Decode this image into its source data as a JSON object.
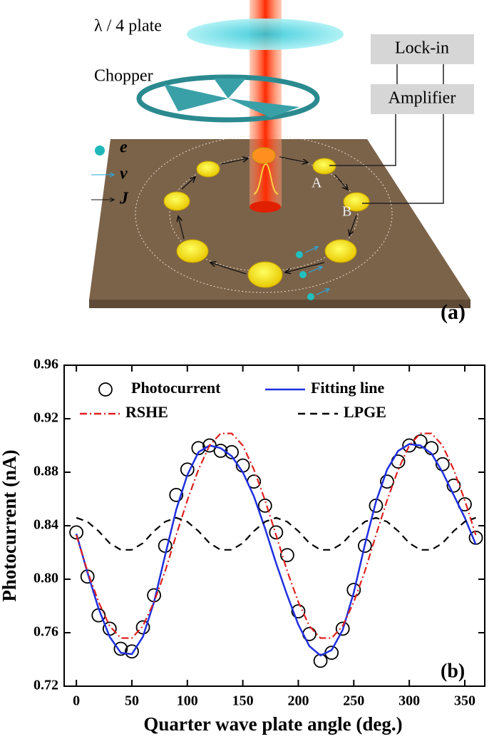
{
  "diagram": {
    "plate_label": "λ / 4  plate",
    "chopper_label": "Chopper",
    "lockin_label": "Lock-in",
    "amplifier_label": "Amplifier",
    "legend_e": "e",
    "legend_v": "v",
    "legend_j": "J",
    "contact_a": "A",
    "contact_b": "B",
    "panel_label": "(a)"
  },
  "chart_data": {
    "type": "line",
    "annotation": "(b)",
    "x_label": "Quarter wave plate angle (deg.)",
    "y_label": "Photocurrent (nA)",
    "x": [
      0,
      10,
      20,
      30,
      40,
      50,
      60,
      70,
      80,
      90,
      100,
      110,
      120,
      130,
      140,
      150,
      160,
      170,
      180,
      190,
      200,
      210,
      220,
      230,
      240,
      250,
      260,
      270,
      280,
      290,
      300,
      310,
      320,
      330,
      340,
      350,
      360
    ],
    "series": [
      {
        "name": "Photocurrent",
        "color": "#000000",
        "style": "circles",
        "values": [
          0.835,
          0.802,
          0.773,
          0.763,
          0.748,
          0.746,
          0.764,
          0.788,
          0.825,
          0.863,
          0.882,
          0.898,
          0.9,
          0.896,
          0.895,
          0.885,
          0.873,
          0.855,
          0.835,
          0.818,
          0.776,
          0.759,
          0.739,
          0.745,
          0.763,
          0.792,
          0.825,
          0.855,
          0.873,
          0.888,
          0.9,
          0.903,
          0.898,
          0.886,
          0.87,
          0.856,
          0.831
        ]
      },
      {
        "name": "Fitting line",
        "color": "#1f2fe0",
        "style": "solid",
        "values": [
          0.834,
          0.805,
          0.778,
          0.757,
          0.745,
          0.744,
          0.757,
          0.783,
          0.818,
          0.852,
          0.878,
          0.895,
          0.9,
          0.898,
          0.892,
          0.88,
          0.862,
          0.838,
          0.812,
          0.788,
          0.766,
          0.75,
          0.743,
          0.747,
          0.762,
          0.79,
          0.826,
          0.858,
          0.882,
          0.896,
          0.901,
          0.9,
          0.894,
          0.88,
          0.863,
          0.846,
          0.826
        ]
      },
      {
        "name": "RSHE",
        "color": "#e02020",
        "style": "dashdot",
        "values": [
          0.833,
          0.806,
          0.783,
          0.765,
          0.756,
          0.756,
          0.765,
          0.783,
          0.806,
          0.833,
          0.859,
          0.882,
          0.9,
          0.909,
          0.909,
          0.9,
          0.882,
          0.859,
          0.833,
          0.806,
          0.783,
          0.765,
          0.756,
          0.756,
          0.765,
          0.783,
          0.806,
          0.833,
          0.859,
          0.882,
          0.9,
          0.909,
          0.909,
          0.9,
          0.882,
          0.859,
          0.833
        ]
      },
      {
        "name": "LPGE",
        "color": "#000000",
        "style": "dash",
        "values": [
          0.846,
          0.843,
          0.836,
          0.827,
          0.822,
          0.822,
          0.827,
          0.836,
          0.843,
          0.846,
          0.843,
          0.836,
          0.827,
          0.822,
          0.822,
          0.827,
          0.836,
          0.843,
          0.846,
          0.843,
          0.836,
          0.827,
          0.822,
          0.822,
          0.827,
          0.836,
          0.843,
          0.846,
          0.843,
          0.836,
          0.827,
          0.822,
          0.822,
          0.827,
          0.836,
          0.843,
          0.846
        ]
      }
    ],
    "xlim": [
      -11,
      368
    ],
    "xticks": [
      0,
      50,
      100,
      150,
      200,
      250,
      300,
      350
    ],
    "ylim": [
      0.72,
      0.96
    ],
    "yticks": [
      0.72,
      0.76,
      {
        "value": 0.8,
        "label": "0.80"
      },
      0.84,
      0.88,
      0.92,
      0.96
    ],
    "grid": false
  }
}
